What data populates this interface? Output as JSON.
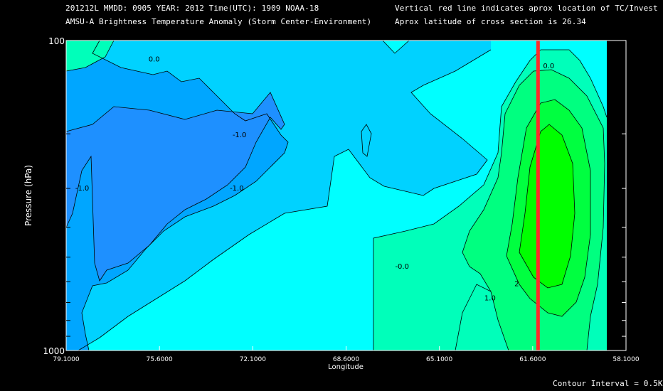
{
  "header": {
    "line1_left": "201212L  MMDD: 0905 YEAR: 2012 Time(UTC): 1909 NOAA-18",
    "line2_left": "AMSU-A Brightness Temperature Anomaly (Storm Center-Environment)",
    "line1_right": "Vertical red line indicates aprox location of TC/Invest",
    "line2_right": "Aprox latitude of cross section is 26.34"
  },
  "footer": {
    "contour_interval": "Contour Interval = 0.5K"
  },
  "chart_data": {
    "type": "heatmap",
    "subtype": "contour-cross-section",
    "xlabel": "Longitude",
    "ylabel": "Pressure (hPa)",
    "x_ticks": [
      "79.1000",
      "75.6000",
      "72.1000",
      "68.6000",
      "65.1000",
      "61.6000",
      "58.1000"
    ],
    "x_tick_values": [
      79.1,
      75.6,
      72.1,
      68.6,
      65.1,
      61.6,
      58.1
    ],
    "y_tick_labels": [
      "100",
      "1000"
    ],
    "ylim": [
      1000,
      100
    ],
    "xlim": [
      79.1,
      58.1
    ],
    "y_scale": "log",
    "contour_interval": 0.5,
    "contour_labels": [
      {
        "text": "0.0",
        "lon": 75.8,
        "p": 117
      },
      {
        "text": "-1.0",
        "lon": 72.6,
        "p": 205
      },
      {
        "text": "-1.0",
        "lon": 78.5,
        "p": 305
      },
      {
        "text": "-1.0",
        "lon": 72.7,
        "p": 305
      },
      {
        "text": "-0.0",
        "lon": 66.5,
        "p": 545
      },
      {
        "text": "0.0",
        "lon": 61.0,
        "p": 123
      },
      {
        "text": "1.0",
        "lon": 63.2,
        "p": 690
      },
      {
        "text": "2",
        "lon": 62.2,
        "p": 620
      }
    ],
    "tc_longitude": 61.4,
    "tc_line_color": "#ff2a2a",
    "colors": {
      "level_neg1_5": "#1e90ff",
      "level_neg1_0": "#00a6ff",
      "level_neg0_5": "#00d2ff",
      "level_0_0": "#00ffff",
      "level_0_5": "#00ffba",
      "level_1_0": "#00ff80",
      "level_1_5": "#00ff40",
      "level_2_0": "#00ff00",
      "background": "#000000"
    }
  }
}
